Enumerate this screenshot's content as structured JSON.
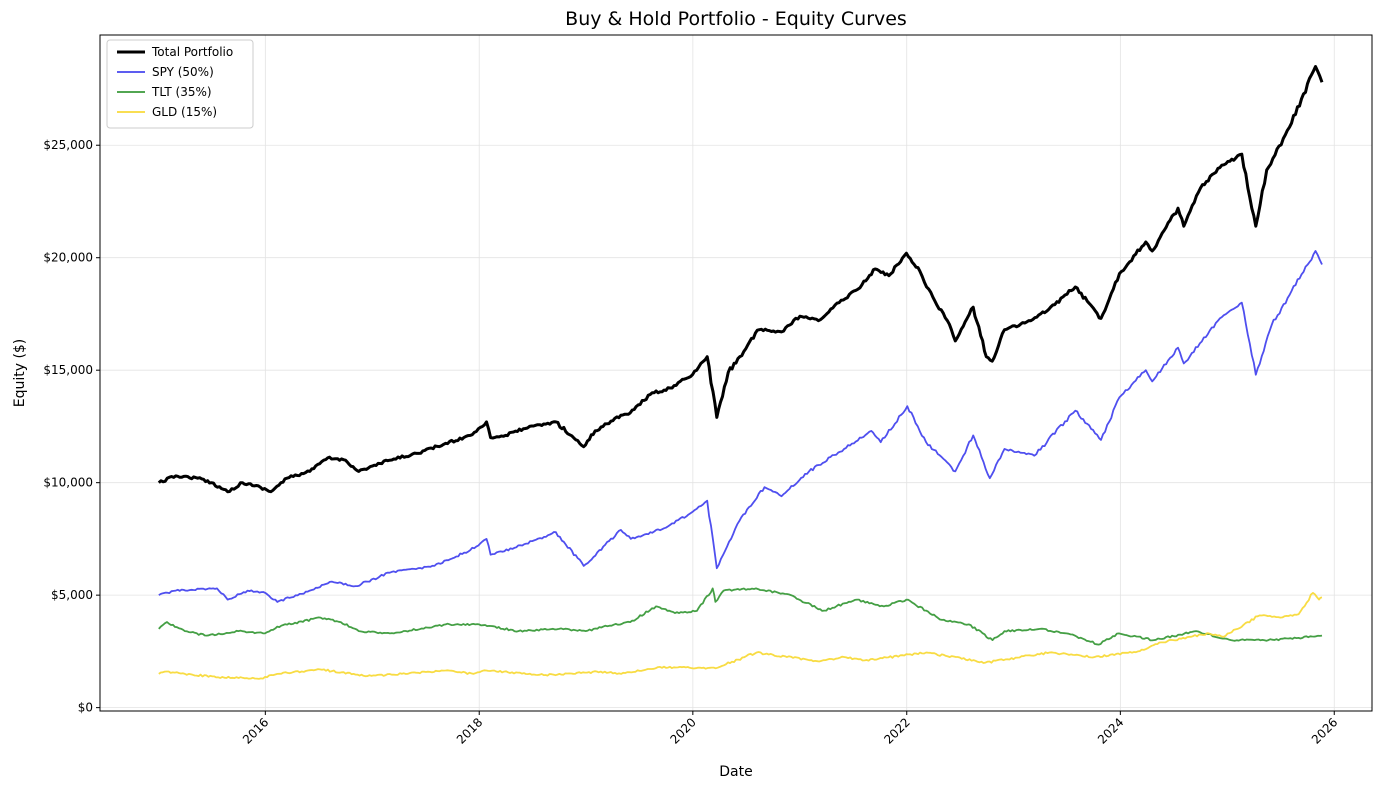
{
  "chart_data": {
    "type": "line",
    "title": "Buy & Hold Portfolio - Equity Curves",
    "xlabel": "Date",
    "ylabel": "Equity ($)",
    "x_tick_labels": [
      "2016",
      "2018",
      "2020",
      "2022",
      "2024",
      "2026"
    ],
    "y_tick_labels": [
      "$0",
      "$5,000",
      "$10,000",
      "$15,000",
      "$20,000",
      "$25,000"
    ],
    "y_ticks": [
      0,
      5000,
      10000,
      15000,
      20000,
      25000
    ],
    "xlim": [
      "2014-06-15",
      "2026-05-10"
    ],
    "ylim": [
      -150,
      29900
    ],
    "grid": true,
    "legend_position": "top-left",
    "series": [
      {
        "name": "Total Portfolio",
        "color": "#000000",
        "width": 3,
        "points": [
          [
            "2015-01-02",
            10000
          ],
          [
            "2015-03-01",
            10300
          ],
          [
            "2015-05-15",
            10200
          ],
          [
            "2015-07-01",
            10000
          ],
          [
            "2015-08-25",
            9600
          ],
          [
            "2015-10-15",
            10000
          ],
          [
            "2015-12-15",
            9800
          ],
          [
            "2016-01-20",
            9600
          ],
          [
            "2016-03-15",
            10200
          ],
          [
            "2016-06-01",
            10500
          ],
          [
            "2016-08-01",
            11100
          ],
          [
            "2016-10-01",
            11000
          ],
          [
            "2016-11-15",
            10500
          ],
          [
            "2017-03-01",
            11000
          ],
          [
            "2017-06-01",
            11300
          ],
          [
            "2017-09-01",
            11700
          ],
          [
            "2017-12-01",
            12100
          ],
          [
            "2018-01-26",
            12700
          ],
          [
            "2018-02-09",
            12000
          ],
          [
            "2018-04-01",
            12100
          ],
          [
            "2018-06-01",
            12400
          ],
          [
            "2018-09-20",
            12700
          ],
          [
            "2018-12-24",
            11600
          ],
          [
            "2019-02-01",
            12300
          ],
          [
            "2019-04-30",
            13000
          ],
          [
            "2019-06-01",
            13100
          ],
          [
            "2019-08-15",
            14000
          ],
          [
            "2019-10-01",
            14100
          ],
          [
            "2019-12-31",
            14800
          ],
          [
            "2020-02-19",
            15600
          ],
          [
            "2020-03-23",
            12900
          ],
          [
            "2020-05-01",
            14900
          ],
          [
            "2020-08-15",
            16800
          ],
          [
            "2020-10-30",
            16700
          ],
          [
            "2021-01-01",
            17400
          ],
          [
            "2021-03-05",
            17200
          ],
          [
            "2021-05-15",
            18000
          ],
          [
            "2021-08-01",
            18800
          ],
          [
            "2021-09-15",
            19500
          ],
          [
            "2021-11-01",
            19200
          ],
          [
            "2021-12-31",
            20200
          ],
          [
            "2022-02-15",
            19400
          ],
          [
            "2022-03-10",
            18700
          ],
          [
            "2022-05-20",
            17200
          ],
          [
            "2022-06-16",
            16300
          ],
          [
            "2022-08-16",
            17800
          ],
          [
            "2022-09-30",
            15600
          ],
          [
            "2022-10-20",
            15400
          ],
          [
            "2022-12-01",
            16800
          ],
          [
            "2023-03-01",
            17200
          ],
          [
            "2023-05-01",
            17700
          ],
          [
            "2023-07-31",
            18700
          ],
          [
            "2023-10-27",
            17300
          ],
          [
            "2023-12-29",
            19300
          ],
          [
            "2024-03-28",
            20700
          ],
          [
            "2024-04-19",
            20300
          ],
          [
            "2024-07-16",
            22200
          ],
          [
            "2024-08-05",
            21400
          ],
          [
            "2024-10-01",
            23100
          ],
          [
            "2024-12-06",
            24000
          ],
          [
            "2025-02-19",
            24600
          ],
          [
            "2025-04-08",
            21400
          ],
          [
            "2025-05-15",
            23900
          ],
          [
            "2025-08-01",
            25800
          ],
          [
            "2025-10-29",
            28500
          ],
          [
            "2025-11-20",
            27800
          ]
        ]
      },
      {
        "name": "SPY (50%)",
        "color": "#4646ee",
        "width": 1.8,
        "points": [
          [
            "2015-01-02",
            5000
          ],
          [
            "2015-03-01",
            5200
          ],
          [
            "2015-07-20",
            5300
          ],
          [
            "2015-08-25",
            4800
          ],
          [
            "2015-11-01",
            5200
          ],
          [
            "2016-01-01",
            5100
          ],
          [
            "2016-02-11",
            4700
          ],
          [
            "2016-06-01",
            5200
          ],
          [
            "2016-08-15",
            5600
          ],
          [
            "2016-11-04",
            5400
          ],
          [
            "2017-03-01",
            6000
          ],
          [
            "2017-08-01",
            6300
          ],
          [
            "2017-12-01",
            7000
          ],
          [
            "2018-01-26",
            7500
          ],
          [
            "2018-02-09",
            6800
          ],
          [
            "2018-05-01",
            7100
          ],
          [
            "2018-09-20",
            7800
          ],
          [
            "2018-12-24",
            6300
          ],
          [
            "2019-04-30",
            7900
          ],
          [
            "2019-06-03",
            7500
          ],
          [
            "2019-10-01",
            8000
          ],
          [
            "2019-12-31",
            8700
          ],
          [
            "2020-02-19",
            9200
          ],
          [
            "2020-03-23",
            6200
          ],
          [
            "2020-06-08",
            8300
          ],
          [
            "2020-09-02",
            9800
          ],
          [
            "2020-10-30",
            9400
          ],
          [
            "2021-02-01",
            10500
          ],
          [
            "2021-06-01",
            11500
          ],
          [
            "2021-09-02",
            12300
          ],
          [
            "2021-10-04",
            11800
          ],
          [
            "2022-01-03",
            13400
          ],
          [
            "2022-03-08",
            11800
          ],
          [
            "2022-06-16",
            10500
          ],
          [
            "2022-08-16",
            12100
          ],
          [
            "2022-10-12",
            10200
          ],
          [
            "2022-12-01",
            11500
          ],
          [
            "2023-03-13",
            11200
          ],
          [
            "2023-07-31",
            13200
          ],
          [
            "2023-10-27",
            11900
          ],
          [
            "2023-12-29",
            13800
          ],
          [
            "2024-03-28",
            15000
          ],
          [
            "2024-04-19",
            14500
          ],
          [
            "2024-07-16",
            16000
          ],
          [
            "2024-08-05",
            15300
          ],
          [
            "2024-12-06",
            17300
          ],
          [
            "2025-02-19",
            18000
          ],
          [
            "2025-04-08",
            14800
          ],
          [
            "2025-06-01",
            17000
          ],
          [
            "2025-10-29",
            20300
          ],
          [
            "2025-11-20",
            19700
          ]
        ]
      },
      {
        "name": "TLT (35%)",
        "color": "#3a9a3a",
        "width": 1.8,
        "points": [
          [
            "2015-01-02",
            3500
          ],
          [
            "2015-01-30",
            3800
          ],
          [
            "2015-04-01",
            3400
          ],
          [
            "2015-06-15",
            3200
          ],
          [
            "2015-10-01",
            3400
          ],
          [
            "2015-12-31",
            3300
          ],
          [
            "2016-02-11",
            3600
          ],
          [
            "2016-07-08",
            4000
          ],
          [
            "2016-09-15",
            3800
          ],
          [
            "2016-11-15",
            3400
          ],
          [
            "2017-03-15",
            3300
          ],
          [
            "2017-09-08",
            3700
          ],
          [
            "2018-01-01",
            3700
          ],
          [
            "2018-05-15",
            3400
          ],
          [
            "2018-10-01",
            3500
          ],
          [
            "2018-12-31",
            3400
          ],
          [
            "2019-03-01",
            3600
          ],
          [
            "2019-06-01",
            3800
          ],
          [
            "2019-08-28",
            4500
          ],
          [
            "2019-11-01",
            4200
          ],
          [
            "2020-01-15",
            4300
          ],
          [
            "2020-03-09",
            5300
          ],
          [
            "2020-03-18",
            4700
          ],
          [
            "2020-04-15",
            5200
          ],
          [
            "2020-08-04",
            5300
          ],
          [
            "2020-12-01",
            5000
          ],
          [
            "2021-03-18",
            4300
          ],
          [
            "2021-07-15",
            4800
          ],
          [
            "2021-10-15",
            4500
          ],
          [
            "2021-12-31",
            4800
          ],
          [
            "2022-05-01",
            3900
          ],
          [
            "2022-08-01",
            3700
          ],
          [
            "2022-10-21",
            3000
          ],
          [
            "2022-12-01",
            3400
          ],
          [
            "2023-04-01",
            3500
          ],
          [
            "2023-07-01",
            3300
          ],
          [
            "2023-10-19",
            2800
          ],
          [
            "2023-12-27",
            3300
          ],
          [
            "2024-04-25",
            3000
          ],
          [
            "2024-09-16",
            3400
          ],
          [
            "2025-01-13",
            3000
          ],
          [
            "2025-05-21",
            3000
          ],
          [
            "2025-09-01",
            3100
          ],
          [
            "2025-11-20",
            3200
          ]
        ]
      },
      {
        "name": "GLD (15%)",
        "color": "#f8da3a",
        "width": 1.8,
        "points": [
          [
            "2015-01-02",
            1500
          ],
          [
            "2015-01-22",
            1600
          ],
          [
            "2015-04-01",
            1500
          ],
          [
            "2015-07-24",
            1350
          ],
          [
            "2015-12-17",
            1300
          ],
          [
            "2016-02-11",
            1500
          ],
          [
            "2016-07-06",
            1700
          ],
          [
            "2016-12-15",
            1400
          ],
          [
            "2017-06-06",
            1550
          ],
          [
            "2017-09-08",
            1650
          ],
          [
            "2017-12-12",
            1500
          ],
          [
            "2018-01-25",
            1650
          ],
          [
            "2018-08-16",
            1450
          ],
          [
            "2019-02-20",
            1600
          ],
          [
            "2019-05-01",
            1500
          ],
          [
            "2019-09-04",
            1800
          ],
          [
            "2020-03-19",
            1750
          ],
          [
            "2020-08-06",
            2450
          ],
          [
            "2021-03-08",
            2050
          ],
          [
            "2021-06-01",
            2250
          ],
          [
            "2021-08-10",
            2100
          ],
          [
            "2022-03-08",
            2450
          ],
          [
            "2022-09-27",
            2000
          ],
          [
            "2023-05-04",
            2450
          ],
          [
            "2023-10-05",
            2250
          ],
          [
            "2024-03-01",
            2500
          ],
          [
            "2024-05-20",
            2900
          ],
          [
            "2024-10-30",
            3300
          ],
          [
            "2024-12-19",
            3150
          ],
          [
            "2025-04-21",
            4100
          ],
          [
            "2025-07-01",
            4000
          ],
          [
            "2025-09-01",
            4150
          ],
          [
            "2025-10-20",
            5100
          ],
          [
            "2025-11-10",
            4800
          ],
          [
            "2025-11-20",
            4900
          ]
        ]
      }
    ]
  }
}
